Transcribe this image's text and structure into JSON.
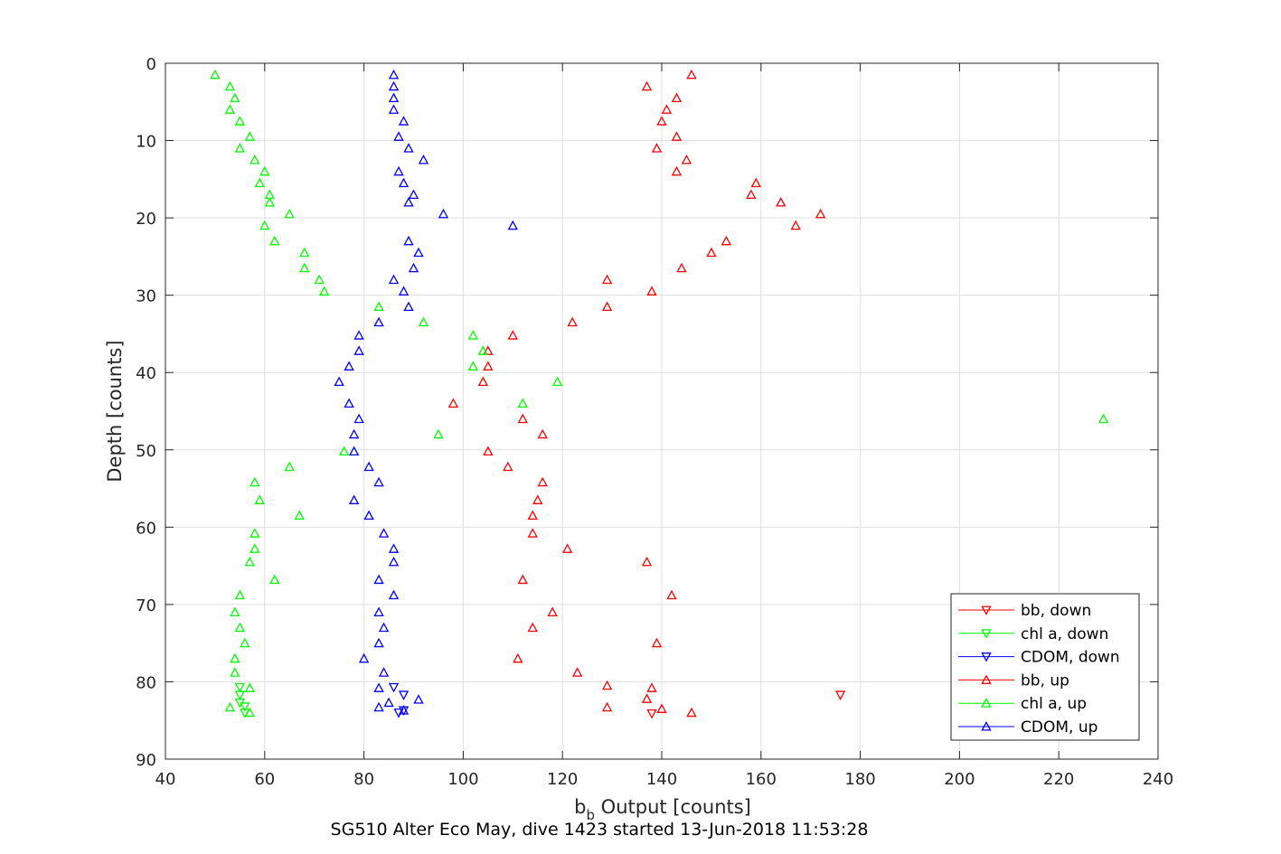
{
  "chart_data": {
    "type": "scatter",
    "title": "SG510 Alter Eco May, dive 1423 started 13-Jun-2018 11:53:28",
    "xlabel_main": "b",
    "xlabel_sub": "b",
    "xlabel_rest": " Output [counts]",
    "ylabel": "Depth [counts]",
    "xlim": [
      40,
      240
    ],
    "ylim": [
      0,
      90
    ],
    "y_reversed": true,
    "grid": true,
    "xticks": [
      "40",
      "60",
      "80",
      "100",
      "120",
      "140",
      "160",
      "180",
      "200",
      "220",
      "240"
    ],
    "yticks": [
      "0",
      "10",
      "20",
      "30",
      "40",
      "50",
      "60",
      "70",
      "80",
      "90"
    ],
    "legend_position": "bottom-right",
    "series": [
      {
        "name": "bb, down",
        "color": "#ff0000",
        "marker": "triangle-down",
        "points": [
          [
            176,
            81.7
          ],
          [
            138,
            84.1
          ]
        ]
      },
      {
        "name": "chl a, down",
        "color": "#00ff00",
        "marker": "triangle-down",
        "points": [
          [
            55,
            80.7
          ],
          [
            55,
            81.7
          ],
          [
            55,
            82.7
          ],
          [
            56,
            83.2
          ],
          [
            56,
            84.0
          ]
        ]
      },
      {
        "name": "CDOM, down",
        "color": "#0000ff",
        "marker": "triangle-down",
        "points": [
          [
            86,
            80.7
          ],
          [
            88,
            81.7
          ],
          [
            88,
            83.7
          ],
          [
            87,
            84.0
          ]
        ]
      },
      {
        "name": "bb, up",
        "color": "#ff0000",
        "marker": "triangle-up",
        "points": [
          [
            146,
            1.5
          ],
          [
            137,
            3
          ],
          [
            143,
            4.5
          ],
          [
            141,
            6
          ],
          [
            140,
            7.5
          ],
          [
            143,
            9.5
          ],
          [
            139,
            11
          ],
          [
            145,
            12.5
          ],
          [
            143,
            14
          ],
          [
            159,
            15.5
          ],
          [
            158,
            17
          ],
          [
            164,
            18
          ],
          [
            172,
            19.5
          ],
          [
            167,
            21
          ],
          [
            153,
            23
          ],
          [
            150,
            24.5
          ],
          [
            144,
            26.5
          ],
          [
            129,
            28
          ],
          [
            138,
            29.5
          ],
          [
            129,
            31.5
          ],
          [
            122,
            33.5
          ],
          [
            110,
            35.2
          ],
          [
            105,
            37.2
          ],
          [
            105,
            39.2
          ],
          [
            104,
            41.2
          ],
          [
            98,
            44
          ],
          [
            112,
            46
          ],
          [
            116,
            48
          ],
          [
            105,
            50.2
          ],
          [
            109,
            52.2
          ],
          [
            116,
            54.2
          ],
          [
            115,
            56.5
          ],
          [
            114,
            58.5
          ],
          [
            114,
            60.8
          ],
          [
            121,
            62.8
          ],
          [
            137,
            64.5
          ],
          [
            112,
            66.8
          ],
          [
            142,
            68.8
          ],
          [
            118,
            71
          ],
          [
            114,
            73
          ],
          [
            139,
            75
          ],
          [
            111,
            77
          ],
          [
            123,
            78.8
          ],
          [
            129,
            80.5
          ],
          [
            138,
            80.8
          ],
          [
            137,
            82.2
          ],
          [
            140,
            83.5
          ],
          [
            146,
            84
          ],
          [
            129,
            83.3
          ]
        ]
      },
      {
        "name": "chl a, up",
        "color": "#00ff00",
        "marker": "triangle-up",
        "points": [
          [
            50,
            1.5
          ],
          [
            53,
            3
          ],
          [
            54,
            4.5
          ],
          [
            53,
            6
          ],
          [
            55,
            7.5
          ],
          [
            57,
            9.5
          ],
          [
            55,
            11
          ],
          [
            58,
            12.5
          ],
          [
            60,
            14
          ],
          [
            59,
            15.5
          ],
          [
            61,
            17
          ],
          [
            61,
            18
          ],
          [
            65,
            19.5
          ],
          [
            60,
            21
          ],
          [
            62,
            23
          ],
          [
            68,
            24.5
          ],
          [
            68,
            26.5
          ],
          [
            71,
            28
          ],
          [
            72,
            29.5
          ],
          [
            83,
            31.5
          ],
          [
            92,
            33.5
          ],
          [
            102,
            35.2
          ],
          [
            104,
            37.2
          ],
          [
            102,
            39.2
          ],
          [
            119,
            41.2
          ],
          [
            112,
            44
          ],
          [
            229,
            46
          ],
          [
            95,
            48
          ],
          [
            76,
            50.2
          ],
          [
            65,
            52.2
          ],
          [
            58,
            54.2
          ],
          [
            59,
            56.5
          ],
          [
            67,
            58.5
          ],
          [
            58,
            60.8
          ],
          [
            58,
            62.8
          ],
          [
            57,
            64.5
          ],
          [
            62,
            66.8
          ],
          [
            55,
            68.8
          ],
          [
            54,
            71
          ],
          [
            55,
            73
          ],
          [
            56,
            75
          ],
          [
            54,
            77
          ],
          [
            54,
            78.8
          ],
          [
            57,
            80.8
          ],
          [
            53,
            83.3
          ],
          [
            57,
            84.0
          ]
        ]
      },
      {
        "name": "CDOM, up",
        "color": "#0000ff",
        "marker": "triangle-up",
        "points": [
          [
            86,
            1.5
          ],
          [
            86,
            3
          ],
          [
            86,
            4.5
          ],
          [
            86,
            6
          ],
          [
            88,
            7.5
          ],
          [
            87,
            9.5
          ],
          [
            89,
            11
          ],
          [
            92,
            12.5
          ],
          [
            87,
            14
          ],
          [
            88,
            15.5
          ],
          [
            90,
            17
          ],
          [
            89,
            18
          ],
          [
            96,
            19.5
          ],
          [
            110,
            21
          ],
          [
            89,
            23
          ],
          [
            91,
            24.5
          ],
          [
            90,
            26.5
          ],
          [
            86,
            28
          ],
          [
            88,
            29.5
          ],
          [
            89,
            31.5
          ],
          [
            83,
            33.5
          ],
          [
            79,
            35.2
          ],
          [
            79,
            37.2
          ],
          [
            77,
            39.2
          ],
          [
            75,
            41.2
          ],
          [
            77,
            44
          ],
          [
            79,
            46
          ],
          [
            78,
            48
          ],
          [
            78,
            50.2
          ],
          [
            81,
            52.2
          ],
          [
            83,
            54.2
          ],
          [
            78,
            56.5
          ],
          [
            81,
            58.5
          ],
          [
            84,
            60.8
          ],
          [
            86,
            62.8
          ],
          [
            86,
            64.5
          ],
          [
            83,
            66.8
          ],
          [
            86,
            68.8
          ],
          [
            83,
            71
          ],
          [
            84,
            73
          ],
          [
            83,
            75
          ],
          [
            80,
            77
          ],
          [
            84,
            78.8
          ],
          [
            83,
            80.8
          ],
          [
            91,
            82.3
          ],
          [
            85,
            82.7
          ],
          [
            83,
            83.3
          ],
          [
            88,
            83.7
          ]
        ]
      }
    ]
  }
}
